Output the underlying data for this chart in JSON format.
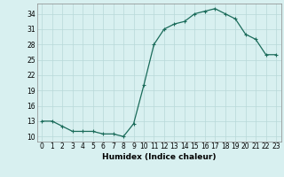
{
  "x": [
    0,
    1,
    2,
    3,
    4,
    5,
    6,
    7,
    8,
    9,
    10,
    11,
    12,
    13,
    14,
    15,
    16,
    17,
    18,
    19,
    20,
    21,
    22,
    23
  ],
  "y": [
    13,
    13,
    12,
    11,
    11,
    11,
    10.5,
    10.5,
    10,
    12.5,
    20,
    28,
    31,
    32,
    32.5,
    34,
    34.5,
    35,
    34,
    33,
    30,
    29,
    26,
    26
  ],
  "line_color": "#1a6b5a",
  "marker": "+",
  "marker_size": 3,
  "marker_lw": 0.8,
  "bg_color": "#d8f0f0",
  "grid_color": "#b8d8d8",
  "xlabel": "Humidex (Indice chaleur)",
  "xlim": [
    -0.5,
    23.5
  ],
  "ylim": [
    9,
    36
  ],
  "yticks": [
    10,
    13,
    16,
    19,
    22,
    25,
    28,
    31,
    34
  ],
  "xticks": [
    0,
    1,
    2,
    3,
    4,
    5,
    6,
    7,
    8,
    9,
    10,
    11,
    12,
    13,
    14,
    15,
    16,
    17,
    18,
    19,
    20,
    21,
    22,
    23
  ],
  "xlabel_fontsize": 6.5,
  "tick_fontsize": 5.5,
  "line_width": 0.9
}
